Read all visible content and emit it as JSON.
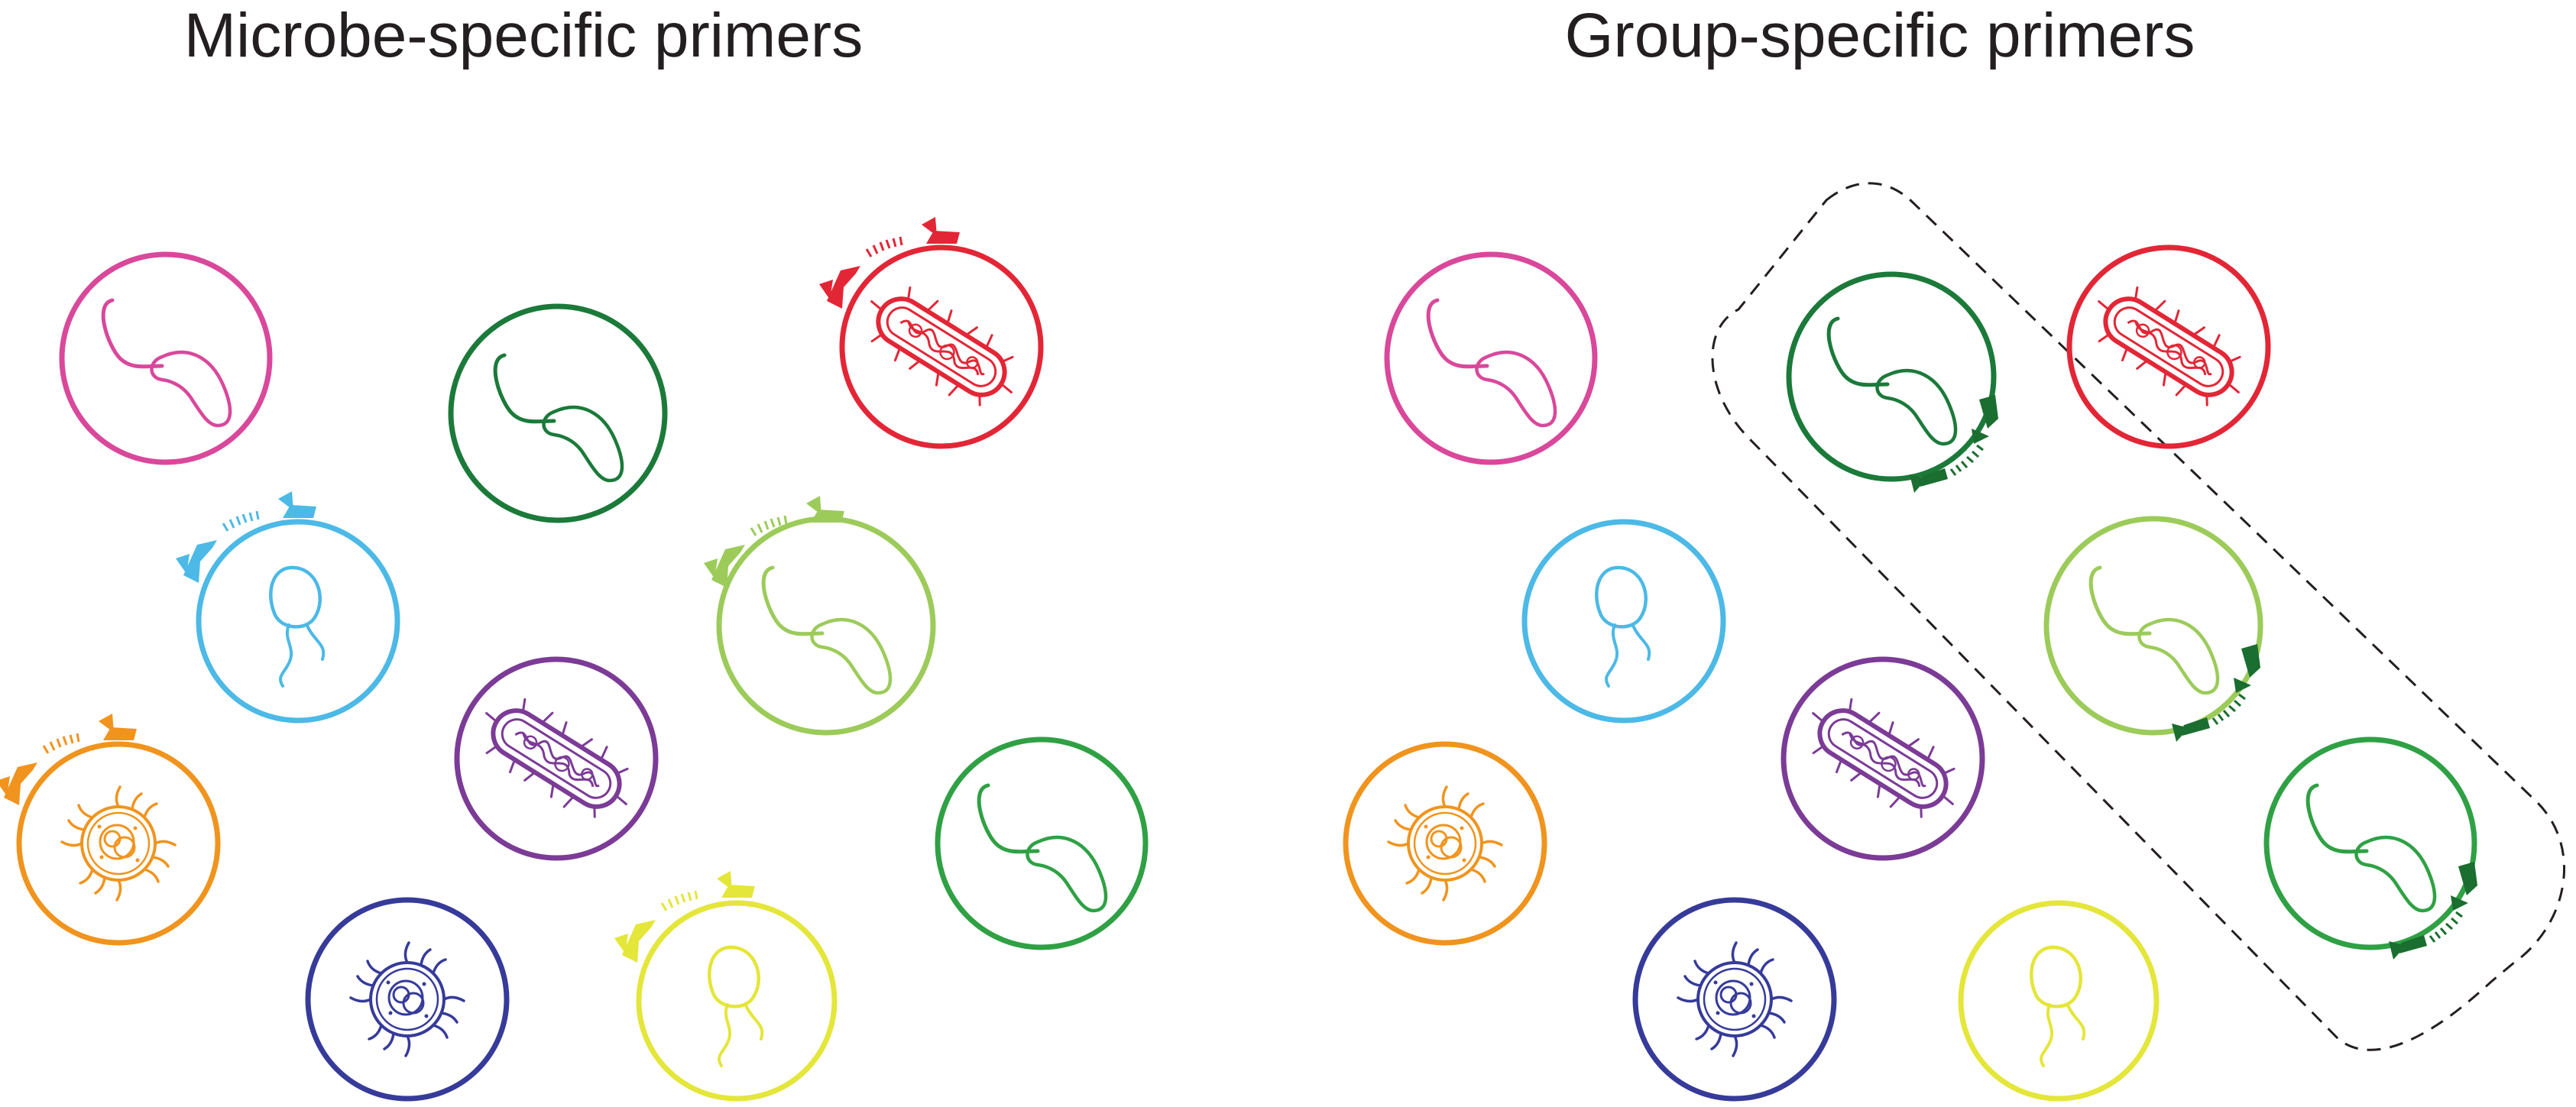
{
  "titles": {
    "left": "Microbe-specific primers",
    "right": "Group-specific primers"
  },
  "colors": {
    "magenta": "#d9489b",
    "dark_green": "#1b7a3a",
    "red": "#e32636",
    "cyan": "#4cb9e6",
    "light_green": "#9ccb5a",
    "purple": "#7b3b96",
    "orange": "#f0941e",
    "medium_green": "#2fa144",
    "navy": "#363b9a",
    "yellow": "#e4e63a",
    "primer_group": "#1a6e2f",
    "group_outline": "#231f20"
  },
  "panels": [
    {
      "name": "left",
      "microbes": [
        {
          "id": "l-magenta",
          "type": "vibrio",
          "color": "magenta",
          "primer": "none"
        },
        {
          "id": "l-darkgreen",
          "type": "vibrio",
          "color": "dark_green",
          "primer": "none"
        },
        {
          "id": "l-red",
          "type": "bacillus",
          "color": "red",
          "primer": "top"
        },
        {
          "id": "l-cyan",
          "type": "flagellate",
          "color": "cyan",
          "primer": "top"
        },
        {
          "id": "l-lightgreen",
          "type": "vibrio",
          "color": "light_green",
          "primer": "top"
        },
        {
          "id": "l-purple",
          "type": "bacillus",
          "color": "purple",
          "primer": "none"
        },
        {
          "id": "l-orange",
          "type": "virus",
          "color": "orange",
          "primer": "top"
        },
        {
          "id": "l-medgreen",
          "type": "vibrio",
          "color": "medium_green",
          "primer": "none"
        },
        {
          "id": "l-navy",
          "type": "virus",
          "color": "navy",
          "primer": "none"
        },
        {
          "id": "l-yellow",
          "type": "flagellate",
          "color": "yellow",
          "primer": "top"
        }
      ]
    },
    {
      "name": "right",
      "microbes": [
        {
          "id": "r-magenta",
          "type": "vibrio",
          "color": "magenta",
          "primer": "none"
        },
        {
          "id": "r-darkgreen",
          "type": "vibrio",
          "color": "dark_green",
          "primer": "group"
        },
        {
          "id": "r-red",
          "type": "bacillus",
          "color": "red",
          "primer": "none"
        },
        {
          "id": "r-cyan",
          "type": "flagellate",
          "color": "cyan",
          "primer": "none"
        },
        {
          "id": "r-lightgreen",
          "type": "vibrio",
          "color": "light_green",
          "primer": "group"
        },
        {
          "id": "r-purple",
          "type": "bacillus",
          "color": "purple",
          "primer": "none"
        },
        {
          "id": "r-orange",
          "type": "virus",
          "color": "orange",
          "primer": "none"
        },
        {
          "id": "r-medgreen",
          "type": "vibrio",
          "color": "medium_green",
          "primer": "group"
        },
        {
          "id": "r-navy",
          "type": "virus",
          "color": "navy",
          "primer": "none"
        },
        {
          "id": "r-yellow",
          "type": "flagellate",
          "color": "yellow",
          "primer": "none"
        }
      ]
    }
  ]
}
